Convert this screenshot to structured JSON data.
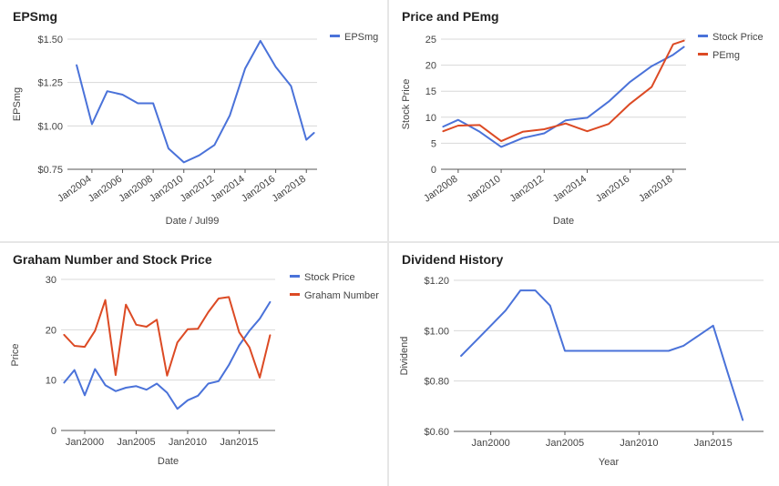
{
  "colors": {
    "blue": "#4a72d9",
    "red": "#dc4a24",
    "grid": "#d8d8d8",
    "axis": "#555555",
    "text": "#444444"
  },
  "chart_data": [
    {
      "type": "line",
      "title": "EPSmg",
      "xlabel": "Date / Jul99",
      "ylabel": "EPSmg",
      "xlim": [
        2002.4,
        2018.7
      ],
      "ylim": [
        0.75,
        1.5
      ],
      "y_ticks": [
        0.75,
        1.0,
        1.25,
        1.5
      ],
      "y_tick_labels": [
        "$0.75",
        "$1.00",
        "$1.25",
        "$1.50"
      ],
      "x_ticks": [
        2004,
        2006,
        2008,
        2010,
        2012,
        2014,
        2016,
        2018
      ],
      "x_tick_labels": [
        "Jan2004",
        "Jan2006",
        "Jan2008",
        "Jan2010",
        "Jan2012",
        "Jan2014",
        "Jan2016",
        "Jan2018"
      ],
      "x_tick_style": "rotated",
      "legend": "right",
      "series": [
        {
          "name": "EPSmg",
          "color": "#4a72d9",
          "points": [
            [
              2003,
              1.35
            ],
            [
              2004,
              1.01
            ],
            [
              2005,
              1.2
            ],
            [
              2006,
              1.18
            ],
            [
              2007,
              1.13
            ],
            [
              2008,
              1.13
            ],
            [
              2009,
              0.87
            ],
            [
              2010,
              0.79
            ],
            [
              2011,
              0.83
            ],
            [
              2012,
              0.89
            ],
            [
              2013,
              1.06
            ],
            [
              2014,
              1.33
            ],
            [
              2015,
              1.49
            ],
            [
              2016,
              1.34
            ],
            [
              2017,
              1.23
            ],
            [
              2018,
              0.92
            ],
            [
              2018.5,
              0.96
            ]
          ]
        }
      ]
    },
    {
      "type": "line",
      "title": "Price and PEmg",
      "xlabel": "Date",
      "ylabel": "Stock Price",
      "xlim": [
        2007.2,
        2018.6
      ],
      "ylim": [
        0,
        25
      ],
      "y_ticks": [
        0,
        5,
        10,
        15,
        20,
        25
      ],
      "y_tick_labels": [
        "0",
        "5",
        "10",
        "15",
        "20",
        "25"
      ],
      "x_ticks": [
        2008,
        2010,
        2012,
        2014,
        2016,
        2018
      ],
      "x_tick_labels": [
        "Jan2008",
        "Jan2010",
        "Jan2012",
        "Jan2014",
        "Jan2016",
        "Jan2018"
      ],
      "x_tick_style": "rotated",
      "legend": "right",
      "series": [
        {
          "name": "Stock Price",
          "color": "#4a72d9",
          "points": [
            [
              2007.3,
              8.2
            ],
            [
              2008,
              9.5
            ],
            [
              2009,
              7.2
            ],
            [
              2010,
              4.3
            ],
            [
              2011,
              6.0
            ],
            [
              2012,
              6.9
            ],
            [
              2013,
              9.4
            ],
            [
              2014,
              9.9
            ],
            [
              2015,
              13.0
            ],
            [
              2016,
              16.8
            ],
            [
              2017,
              19.8
            ],
            [
              2018,
              22.0
            ],
            [
              2018.5,
              23.5
            ]
          ]
        },
        {
          "name": "PEmg",
          "color": "#dc4a24",
          "points": [
            [
              2007.3,
              7.3
            ],
            [
              2008,
              8.4
            ],
            [
              2009,
              8.5
            ],
            [
              2010,
              5.4
            ],
            [
              2011,
              7.2
            ],
            [
              2012,
              7.7
            ],
            [
              2013,
              8.8
            ],
            [
              2014,
              7.3
            ],
            [
              2015,
              8.7
            ],
            [
              2016,
              12.6
            ],
            [
              2017,
              15.8
            ],
            [
              2018,
              24.0
            ],
            [
              2018.5,
              24.7
            ]
          ]
        }
      ]
    },
    {
      "type": "line",
      "title": "Graham Number and Stock Price",
      "xlabel": "Date",
      "ylabel": "Price",
      "xlim": [
        1997.7,
        2018.5
      ],
      "ylim": [
        0,
        30
      ],
      "y_ticks": [
        0,
        10,
        20,
        30
      ],
      "y_tick_labels": [
        "0",
        "10",
        "20",
        "30"
      ],
      "x_ticks": [
        2000,
        2005,
        2010,
        2015
      ],
      "x_tick_labels": [
        "Jan2000",
        "Jan2005",
        "Jan2010",
        "Jan2015"
      ],
      "x_tick_style": "flat",
      "legend": "right",
      "series": [
        {
          "name": "Stock Price",
          "color": "#4a72d9",
          "points": [
            [
              1998,
              9.5
            ],
            [
              1999,
              12.0
            ],
            [
              2000,
              7.0
            ],
            [
              2001,
              12.2
            ],
            [
              2002,
              9.0
            ],
            [
              2003,
              7.8
            ],
            [
              2004,
              8.5
            ],
            [
              2005,
              8.8
            ],
            [
              2006,
              8.1
            ],
            [
              2007,
              9.3
            ],
            [
              2008,
              7.5
            ],
            [
              2009,
              4.3
            ],
            [
              2010,
              6.0
            ],
            [
              2011,
              6.9
            ],
            [
              2012,
              9.3
            ],
            [
              2013,
              9.8
            ],
            [
              2014,
              13.0
            ],
            [
              2015,
              16.9
            ],
            [
              2016,
              19.8
            ],
            [
              2017,
              22.2
            ],
            [
              2018,
              25.5
            ]
          ]
        },
        {
          "name": "Graham Number",
          "color": "#dc4a24",
          "points": [
            [
              1998,
              19.0
            ],
            [
              1999,
              16.8
            ],
            [
              2000,
              16.6
            ],
            [
              2001,
              19.8
            ],
            [
              2002,
              25.9
            ],
            [
              2003,
              11.0
            ],
            [
              2004,
              25.0
            ],
            [
              2005,
              21.0
            ],
            [
              2006,
              20.6
            ],
            [
              2007,
              22.0
            ],
            [
              2008,
              10.9
            ],
            [
              2009,
              17.5
            ],
            [
              2010,
              20.1
            ],
            [
              2011,
              20.2
            ],
            [
              2012,
              23.5
            ],
            [
              2013,
              26.2
            ],
            [
              2014,
              26.5
            ],
            [
              2015,
              19.5
            ],
            [
              2016,
              16.5
            ],
            [
              2017,
              10.5
            ],
            [
              2018,
              18.9
            ]
          ]
        }
      ]
    },
    {
      "type": "line",
      "title": "Dividend History",
      "xlabel": "Year",
      "ylabel": "Dividend",
      "xlim": [
        1997.5,
        2018.4
      ],
      "ylim": [
        0.6,
        1.2
      ],
      "y_ticks": [
        0.6,
        0.8,
        1.0,
        1.2
      ],
      "y_tick_labels": [
        "$0.60",
        "$0.80",
        "$1.00",
        "$1.20"
      ],
      "x_ticks": [
        2000,
        2005,
        2010,
        2015
      ],
      "x_tick_labels": [
        "Jan2000",
        "Jan2005",
        "Jan2010",
        "Jan2015"
      ],
      "x_tick_style": "flat",
      "legend": "none",
      "series": [
        {
          "name": "",
          "color": "#4a72d9",
          "points": [
            [
              1998,
              0.9
            ],
            [
              1999,
              0.96
            ],
            [
              2000,
              1.02
            ],
            [
              2001,
              1.08
            ],
            [
              2002,
              1.16
            ],
            [
              2003,
              1.16
            ],
            [
              2004,
              1.1
            ],
            [
              2005,
              0.92
            ],
            [
              2006,
              0.92
            ],
            [
              2007,
              0.92
            ],
            [
              2008,
              0.92
            ],
            [
              2009,
              0.92
            ],
            [
              2010,
              0.92
            ],
            [
              2011,
              0.92
            ],
            [
              2012,
              0.92
            ],
            [
              2013,
              0.94
            ],
            [
              2014,
              0.98
            ],
            [
              2015,
              1.02
            ],
            [
              2016,
              0.83
            ],
            [
              2017,
              0.645
            ]
          ]
        }
      ]
    }
  ]
}
